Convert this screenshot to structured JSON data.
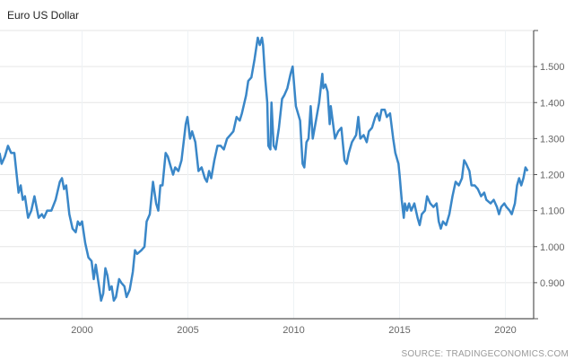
{
  "chart_data": {
    "type": "line",
    "title": "Euro US Dollar",
    "source": "SOURCE: TRADINGECONOMICS.COM",
    "xlabel": "",
    "ylabel": "",
    "xlim": [
      1996.1,
      2021.45
    ],
    "ylim": [
      0.8,
      1.6
    ],
    "grid": true,
    "x_ticks": [
      2000,
      2005,
      2010,
      2015,
      2020
    ],
    "x_tick_labels": [
      "2000",
      "2005",
      "2010",
      "2015",
      "2020"
    ],
    "y_ticks": [
      0.9,
      1.0,
      1.1,
      1.2,
      1.3,
      1.4,
      1.5
    ],
    "y_tick_labels": [
      "0.900",
      "1.000",
      "1.100",
      "1.200",
      "1.300",
      "1.400",
      "1.500"
    ],
    "line_color": "#3a87c8",
    "series": [
      {
        "name": "Euro US Dollar",
        "x": [
          1996.1,
          1996.2,
          1996.35,
          1996.5,
          1996.65,
          1996.8,
          1997.0,
          1997.1,
          1997.2,
          1997.3,
          1997.45,
          1997.6,
          1997.75,
          1997.95,
          1998.1,
          1998.2,
          1998.35,
          1998.55,
          1998.75,
          1998.95,
          1999.05,
          1999.15,
          1999.25,
          1999.4,
          1999.55,
          1999.7,
          1999.8,
          1999.9,
          2000.0,
          2000.15,
          2000.3,
          2000.45,
          2000.55,
          2000.65,
          2000.8,
          2000.9,
          2001.0,
          2001.1,
          2001.2,
          2001.3,
          2001.4,
          2001.5,
          2001.6,
          2001.75,
          2001.85,
          2002.0,
          2002.1,
          2002.25,
          2002.4,
          2002.5,
          2002.6,
          2002.8,
          2002.95,
          2003.05,
          2003.2,
          2003.35,
          2003.5,
          2003.6,
          2003.7,
          2003.8,
          2003.95,
          2004.05,
          2004.2,
          2004.3,
          2004.4,
          2004.55,
          2004.7,
          2004.9,
          2004.98,
          2005.1,
          2005.2,
          2005.35,
          2005.5,
          2005.65,
          2005.8,
          2005.9,
          2006.0,
          2006.1,
          2006.25,
          2006.4,
          2006.55,
          2006.7,
          2006.85,
          2007.0,
          2007.15,
          2007.3,
          2007.45,
          2007.55,
          2007.75,
          2007.85,
          2008.0,
          2008.15,
          2008.3,
          2008.4,
          2008.5,
          2008.55,
          2008.65,
          2008.75,
          2008.8,
          2008.9,
          2008.95,
          2009.05,
          2009.15,
          2009.3,
          2009.45,
          2009.55,
          2009.7,
          2009.85,
          2009.95,
          2010.1,
          2010.3,
          2010.42,
          2010.5,
          2010.6,
          2010.7,
          2010.8,
          2010.9,
          2011.05,
          2011.2,
          2011.35,
          2011.4,
          2011.5,
          2011.6,
          2011.7,
          2011.75,
          2011.95,
          2012.1,
          2012.25,
          2012.4,
          2012.5,
          2012.6,
          2012.75,
          2012.95,
          2013.05,
          2013.15,
          2013.3,
          2013.45,
          2013.55,
          2013.7,
          2013.85,
          2013.95,
          2014.05,
          2014.15,
          2014.3,
          2014.4,
          2014.55,
          2014.7,
          2014.8,
          2014.95,
          2015.0,
          2015.1,
          2015.2,
          2015.25,
          2015.35,
          2015.45,
          2015.55,
          2015.7,
          2015.85,
          2015.95,
          2016.05,
          2016.2,
          2016.3,
          2016.45,
          2016.6,
          2016.75,
          2016.85,
          2016.95,
          2017.05,
          2017.2,
          2017.35,
          2017.5,
          2017.65,
          2017.8,
          2017.95,
          2018.05,
          2018.15,
          2018.3,
          2018.4,
          2018.55,
          2018.7,
          2018.85,
          2019.0,
          2019.1,
          2019.3,
          2019.45,
          2019.6,
          2019.7,
          2019.8,
          2019.95,
          2020.05,
          2020.2,
          2020.3,
          2020.45,
          2020.55,
          2020.65,
          2020.75,
          2020.85,
          2020.95,
          2021.05
        ],
        "y": [
          1.26,
          1.23,
          1.25,
          1.28,
          1.26,
          1.26,
          1.15,
          1.17,
          1.13,
          1.14,
          1.08,
          1.1,
          1.14,
          1.08,
          1.09,
          1.08,
          1.1,
          1.1,
          1.13,
          1.18,
          1.19,
          1.16,
          1.17,
          1.09,
          1.05,
          1.04,
          1.07,
          1.06,
          1.07,
          1.01,
          0.97,
          0.96,
          0.91,
          0.95,
          0.89,
          0.85,
          0.87,
          0.94,
          0.92,
          0.88,
          0.89,
          0.85,
          0.86,
          0.91,
          0.9,
          0.89,
          0.86,
          0.88,
          0.93,
          0.99,
          0.98,
          0.99,
          1.0,
          1.07,
          1.09,
          1.18,
          1.12,
          1.1,
          1.17,
          1.17,
          1.26,
          1.25,
          1.22,
          1.2,
          1.22,
          1.21,
          1.24,
          1.34,
          1.36,
          1.3,
          1.32,
          1.29,
          1.21,
          1.22,
          1.19,
          1.18,
          1.21,
          1.19,
          1.24,
          1.28,
          1.28,
          1.27,
          1.3,
          1.31,
          1.32,
          1.36,
          1.35,
          1.37,
          1.42,
          1.46,
          1.47,
          1.52,
          1.58,
          1.56,
          1.58,
          1.56,
          1.47,
          1.4,
          1.28,
          1.27,
          1.4,
          1.28,
          1.27,
          1.33,
          1.41,
          1.42,
          1.44,
          1.48,
          1.5,
          1.39,
          1.35,
          1.23,
          1.22,
          1.29,
          1.3,
          1.39,
          1.3,
          1.35,
          1.4,
          1.48,
          1.44,
          1.45,
          1.43,
          1.34,
          1.39,
          1.3,
          1.32,
          1.33,
          1.24,
          1.23,
          1.26,
          1.29,
          1.31,
          1.36,
          1.3,
          1.31,
          1.29,
          1.32,
          1.33,
          1.36,
          1.37,
          1.35,
          1.38,
          1.38,
          1.36,
          1.37,
          1.3,
          1.26,
          1.23,
          1.2,
          1.13,
          1.08,
          1.12,
          1.1,
          1.12,
          1.1,
          1.12,
          1.08,
          1.06,
          1.09,
          1.1,
          1.14,
          1.12,
          1.11,
          1.12,
          1.07,
          1.05,
          1.07,
          1.06,
          1.09,
          1.14,
          1.18,
          1.17,
          1.19,
          1.24,
          1.23,
          1.21,
          1.17,
          1.17,
          1.16,
          1.14,
          1.15,
          1.13,
          1.12,
          1.13,
          1.11,
          1.09,
          1.11,
          1.12,
          1.11,
          1.1,
          1.09,
          1.12,
          1.17,
          1.19,
          1.17,
          1.19,
          1.22,
          1.21
        ]
      }
    ]
  }
}
